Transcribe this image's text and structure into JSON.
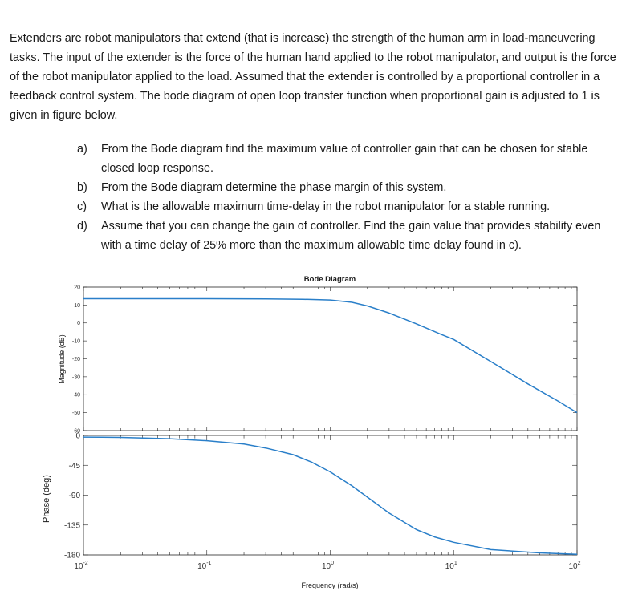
{
  "problem": {
    "intro": "Extenders are robot manipulators that extend (that is increase) the strength of the human arm in load-maneuvering tasks. The input of the extender is the force of the human hand applied to the robot manipulator, and output is the force of the robot manipulator applied to the load. Assumed that  the extender is controlled by a proportional controller in a feedback control system. The bode diagram of open loop transfer function when proportional gain is adjusted to 1 is given in figure below.",
    "questions": [
      {
        "letter": "a)",
        "text": "From the Bode diagram find the maximum value of controller gain that can be chosen for stable closed loop response."
      },
      {
        "letter": "b)",
        "text": "From the Bode diagram determine the phase margin of this system."
      },
      {
        "letter": "c)",
        "text": "What is the allowable maximum time-delay in the robot manipulator for a stable running."
      },
      {
        "letter": "d)",
        "text": "Assume that you can change the gain of controller. Find the gain value that provides stability even with a time delay of 25% more than the maximum allowable time delay found in c)."
      }
    ]
  },
  "figure": {
    "colors": {
      "curve": "#2a7fc9",
      "axis": "#262626",
      "grid_tick": "#262626"
    }
  },
  "chart_data": [
    {
      "type": "line",
      "title": "Bode Diagram",
      "xlabel": "Frequency  (rad/s)",
      "ylabel": "Magnitude (dB)",
      "xscale": "log",
      "xlim": [
        0.01,
        100
      ],
      "ylim": [
        -60,
        20
      ],
      "x_tick_labels": [],
      "y_ticks": [
        20,
        10,
        0,
        -10,
        -20,
        -30,
        -40,
        -50,
        -60
      ],
      "grid": false,
      "series": [
        {
          "x": [
            0.01,
            0.1,
            0.3,
            0.6,
            1,
            1.5,
            2,
            3,
            5,
            8,
            10,
            20,
            40,
            70,
            100
          ],
          "values": [
            13.5,
            13.5,
            13.4,
            13.2,
            12.8,
            11.5,
            9.5,
            5.5,
            -0.5,
            -6.5,
            -9.2,
            -21.5,
            -34,
            -43.5,
            -50
          ]
        }
      ]
    },
    {
      "type": "line",
      "title": "",
      "xlabel": "Frequency  (rad/s)",
      "ylabel": "Phase (deg)",
      "xscale": "log",
      "xlim": [
        0.01,
        100
      ],
      "ylim": [
        -180,
        0
      ],
      "x_tick_labels": [
        {
          "base": "10",
          "exp": "-2"
        },
        {
          "base": "10",
          "exp": "-1"
        },
        {
          "base": "10",
          "exp": "0"
        },
        {
          "base": "10",
          "exp": "1"
        },
        {
          "base": "10",
          "exp": "2"
        }
      ],
      "y_ticks": [
        0,
        -45,
        -90,
        -135,
        -180
      ],
      "grid": false,
      "series": [
        {
          "x": [
            0.01,
            0.02,
            0.05,
            0.1,
            0.2,
            0.3,
            0.5,
            0.7,
            1,
            1.5,
            2,
            3,
            5,
            7,
            10,
            20,
            50,
            100
          ],
          "values": [
            -2.5,
            -3,
            -5,
            -8,
            -13,
            -19,
            -29,
            -40,
            -55,
            -76,
            -93,
            -117,
            -142,
            -153,
            -161,
            -172,
            -177,
            -179
          ]
        }
      ]
    }
  ]
}
